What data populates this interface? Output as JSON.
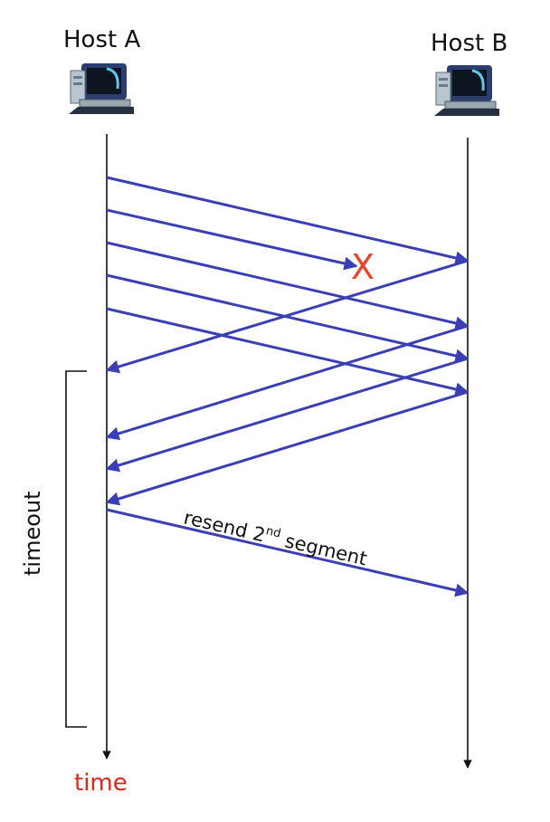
{
  "host_a": {
    "label": "Host A"
  },
  "host_b": {
    "label": "Host B"
  },
  "lost_marker": "X",
  "timeout_label": "timeout",
  "time_label": "time",
  "resend_label": {
    "pre": "resend 2",
    "sup": "nd",
    "post": " segment"
  },
  "colors": {
    "arrow": "#3b3fb6",
    "lost": "#e8432b",
    "time": "#e0251b",
    "line": "#111111"
  },
  "icons": [
    "computer-icon",
    "computer-icon"
  ]
}
